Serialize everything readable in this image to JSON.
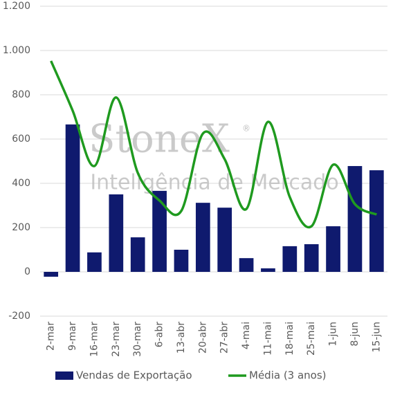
{
  "chart_data": {
    "type": "bar-line",
    "watermark": {
      "brand": "StoneX",
      "mark": "®",
      "tagline": "Inteligência de Mercado"
    },
    "categories": [
      "2-mar",
      "9-mar",
      "16-mar",
      "23-mar",
      "30-mar",
      "6-abr",
      "13-abr",
      "20-abr",
      "27-abr",
      "4-mai",
      "11-mai",
      "18-mai",
      "25-mai",
      "1-jun",
      "8-jun",
      "15-jun"
    ],
    "series": [
      {
        "name": "Vendas de Exportação",
        "type": "bar",
        "color": "#0f1a6e",
        "values": [
          -22,
          666,
          88,
          350,
          156,
          366,
          100,
          312,
          290,
          62,
          16,
          116,
          125,
          206,
          478,
          459
        ]
      },
      {
        "name": "Média (3 anos)",
        "type": "line",
        "color": "#1f9a1f",
        "values": [
          953,
          728,
          478,
          788,
          447,
          322,
          275,
          625,
          509,
          284,
          678,
          338,
          206,
          484,
          306,
          259
        ]
      }
    ],
    "ylim": [
      -200,
      1200
    ],
    "yticks": [
      -200,
      0,
      200,
      400,
      600,
      800,
      {
        "value": 1000,
        "label": "1.000"
      },
      {
        "value": 1200,
        "label": "1.200"
      }
    ],
    "grid": true,
    "legend": "bottom"
  }
}
